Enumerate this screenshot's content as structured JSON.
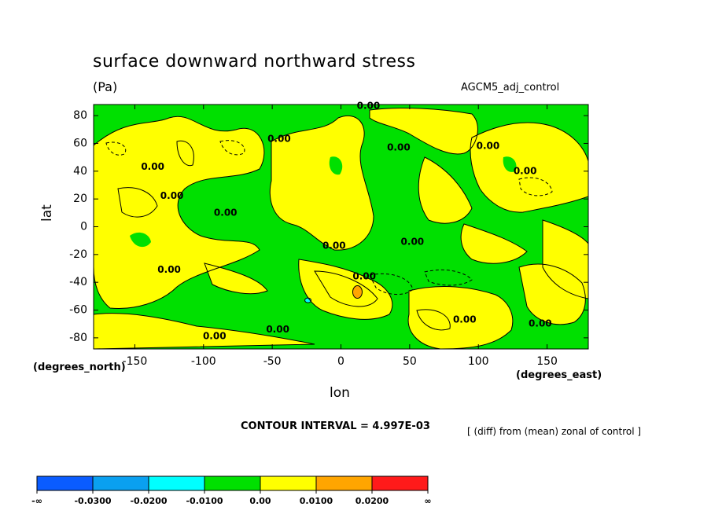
{
  "header": {
    "title": "surface downward northward stress",
    "units": "(Pa)",
    "experiment": "AGCM5_adj_control"
  },
  "axes": {
    "xlabel": "lon",
    "ylabel": "lat",
    "xunits": "(degrees_east)",
    "yunits": "(degrees_north)"
  },
  "footer": {
    "contour_interval": "CONTOUR INTERVAL = 4.997E-03",
    "note": "[ (diff) from (mean) zonal of control ]"
  },
  "chart_data": {
    "type": "heatmap",
    "title": "surface downward northward stress",
    "units": "(Pa)",
    "xlabel": "lon",
    "ylabel": "lat",
    "xlim": [
      -180,
      180
    ],
    "ylim": [
      -88,
      88
    ],
    "xticks": [
      -150,
      -100,
      -50,
      0,
      50,
      100,
      150
    ],
    "yticks": [
      -80,
      -60,
      -40,
      -20,
      0,
      20,
      40,
      60,
      80
    ],
    "contour_interval": 0.004997,
    "contour_labels": [
      {
        "lon": 20,
        "lat": 87,
        "text": "0.00"
      },
      {
        "lon": -137,
        "lat": 43,
        "text": "0.00"
      },
      {
        "lon": -123,
        "lat": 22,
        "text": "0.00"
      },
      {
        "lon": -84,
        "lat": 10,
        "text": "0.00"
      },
      {
        "lon": -45,
        "lat": 63,
        "text": "0.00"
      },
      {
        "lon": 42,
        "lat": 57,
        "text": "0.00"
      },
      {
        "lon": 107,
        "lat": 58,
        "text": "0.00"
      },
      {
        "lon": 134,
        "lat": 40,
        "text": "0.00"
      },
      {
        "lon": -125,
        "lat": -31,
        "text": "0.00"
      },
      {
        "lon": -5,
        "lat": -14,
        "text": "0.00"
      },
      {
        "lon": 52,
        "lat": -11,
        "text": "0.00"
      },
      {
        "lon": 17,
        "lat": -36,
        "text": "0.00"
      },
      {
        "lon": 90,
        "lat": -67,
        "text": "0.00"
      },
      {
        "lon": 145,
        "lat": -70,
        "text": "0.00"
      },
      {
        "lon": -46,
        "lat": -74,
        "text": "0.00"
      },
      {
        "lon": -92,
        "lat": -79,
        "text": "0.00"
      }
    ],
    "colorbar": {
      "levels": [
        "-∞",
        "-0.0300",
        "-0.0200",
        "-0.0100",
        "0.00",
        "0.0100",
        "0.0200",
        "∞"
      ],
      "colors": [
        "#0a5cff",
        "#0aa0f0",
        "#00ffff",
        "#00e000",
        "#ffff00",
        "#ffa500",
        "#ff1a1a"
      ]
    },
    "colors": {
      "negative": "#00e000",
      "positive": "#ffff00",
      "strong_positive": "#ffa500",
      "strong_negative": "#00ffff"
    }
  }
}
